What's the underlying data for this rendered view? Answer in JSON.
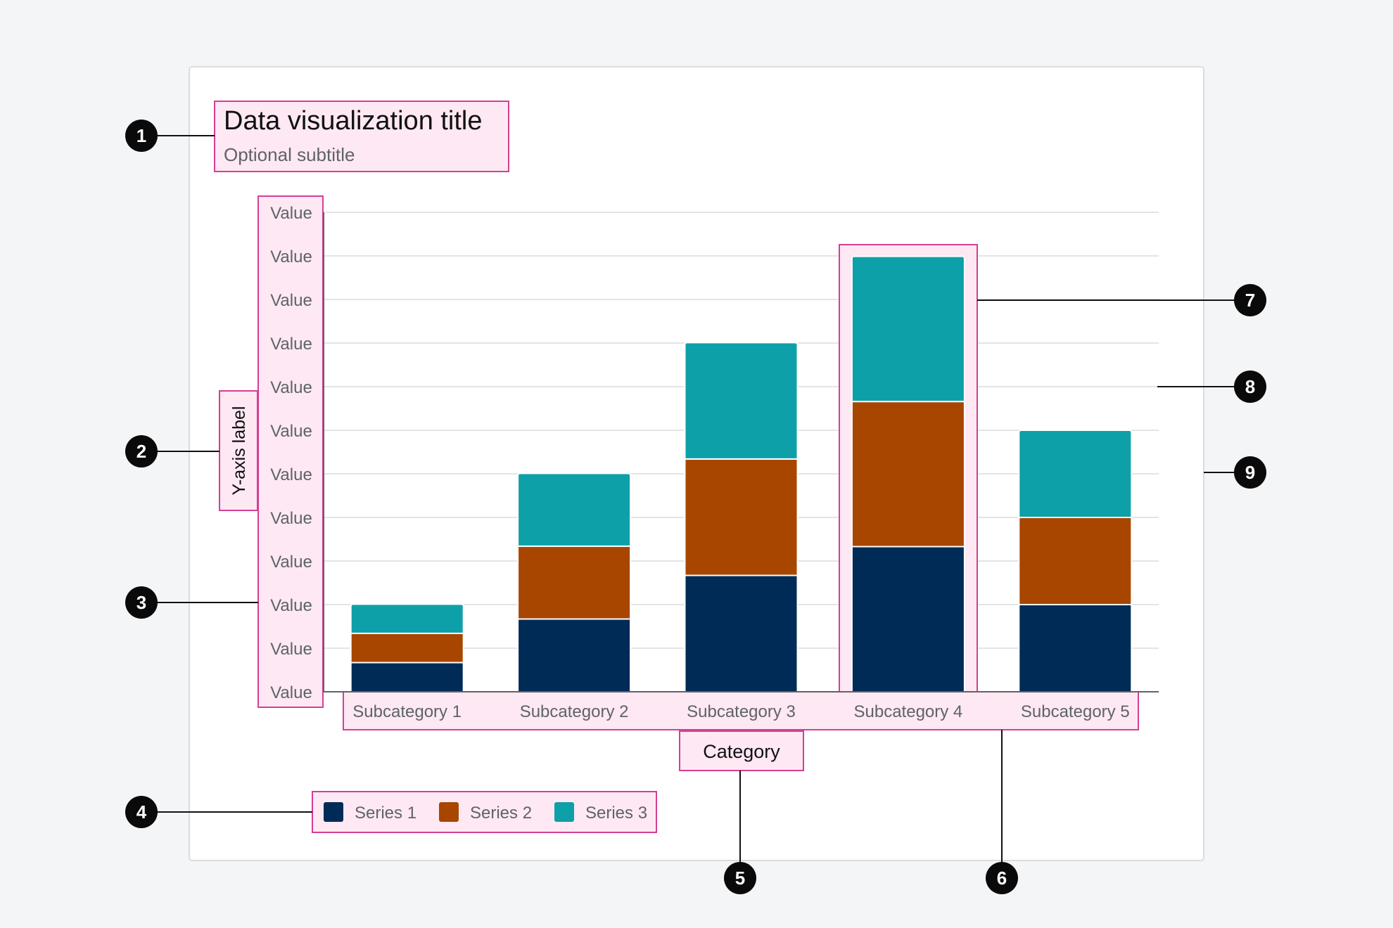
{
  "title": "Data visualization title",
  "subtitle": "Optional subtitle",
  "colors": {
    "background": "#f4f5f7",
    "card": "#ffffff",
    "highlight_fill": "#fde8f3",
    "highlight_stroke": "#d43f93",
    "series_1": "#002b57",
    "series_2": "#a84600",
    "series_3": "#0ea0a8",
    "badge": "#0a0a0a"
  },
  "callouts": [
    "1",
    "2",
    "3",
    "4",
    "5",
    "6",
    "7",
    "8",
    "9"
  ],
  "chart_data": {
    "type": "bar",
    "stacked": true,
    "title": "Data visualization title",
    "subtitle": "Optional subtitle",
    "xlabel": "Category",
    "ylabel": "Y-axis label",
    "categories": [
      "Subcategory 1",
      "Subcategory 2",
      "Subcategory 3",
      "Subcategory 4",
      "Subcategory 5"
    ],
    "y_tick_labels": [
      "Value",
      "Value",
      "Value",
      "Value",
      "Value",
      "Value",
      "Value",
      "Value",
      "Value",
      "Value",
      "Value",
      "Value"
    ],
    "ylim": [
      0,
      11
    ],
    "grid": true,
    "legend_position": "bottom-left",
    "series": [
      {
        "name": "Series 1",
        "color": "#002b57",
        "values": [
          0.67,
          1.67,
          2.67,
          3.33,
          2.0
        ]
      },
      {
        "name": "Series 2",
        "color": "#a84600",
        "values": [
          0.67,
          1.67,
          2.67,
          3.33,
          2.0
        ]
      },
      {
        "name": "Series 3",
        "color": "#0ea0a8",
        "values": [
          0.67,
          1.67,
          2.67,
          3.33,
          2.0
        ]
      }
    ],
    "highlighted_category": "Subcategory 4"
  }
}
